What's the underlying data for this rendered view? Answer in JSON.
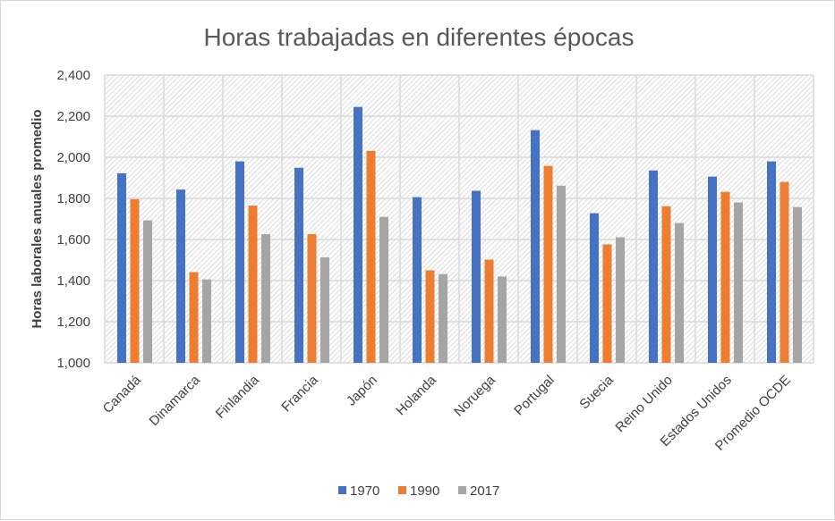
{
  "chart_data": {
    "type": "bar",
    "title": "Horas trabajadas en diferentes épocas",
    "xlabel": "",
    "ylabel": "Horas laborales anuales promedio",
    "ylim": [
      1000,
      2400
    ],
    "yticks": [
      "1,000",
      "1,200",
      "1,400",
      "1,600",
      "1,800",
      "2,000",
      "2,200",
      "2,400"
    ],
    "ytick_values": [
      1000,
      1200,
      1400,
      1600,
      1800,
      2000,
      2200,
      2400
    ],
    "grid": true,
    "legend_position": "bottom",
    "categories": [
      "Canadá",
      "Dinamarca",
      "Finlandia",
      "Francia",
      "Japón",
      "Holanda",
      "Noruega",
      "Portugal",
      "Suecia",
      "Reino Unido",
      "Estados Unidos",
      "Promedio OCDE"
    ],
    "series": [
      {
        "name": "1970",
        "color": "#4472c4",
        "values": [
          1922,
          1843,
          1980,
          1949,
          2245,
          1806,
          1837,
          2132,
          1728,
          1936,
          1906,
          1980
        ]
      },
      {
        "name": "1990",
        "color": "#ed7d31",
        "values": [
          1796,
          1441,
          1765,
          1626,
          2031,
          1450,
          1502,
          1958,
          1576,
          1762,
          1832,
          1880
        ]
      },
      {
        "name": "2017",
        "color": "#a5a5a5",
        "values": [
          1693,
          1406,
          1626,
          1513,
          1710,
          1432,
          1420,
          1862,
          1611,
          1680,
          1780,
          1758
        ]
      }
    ]
  }
}
